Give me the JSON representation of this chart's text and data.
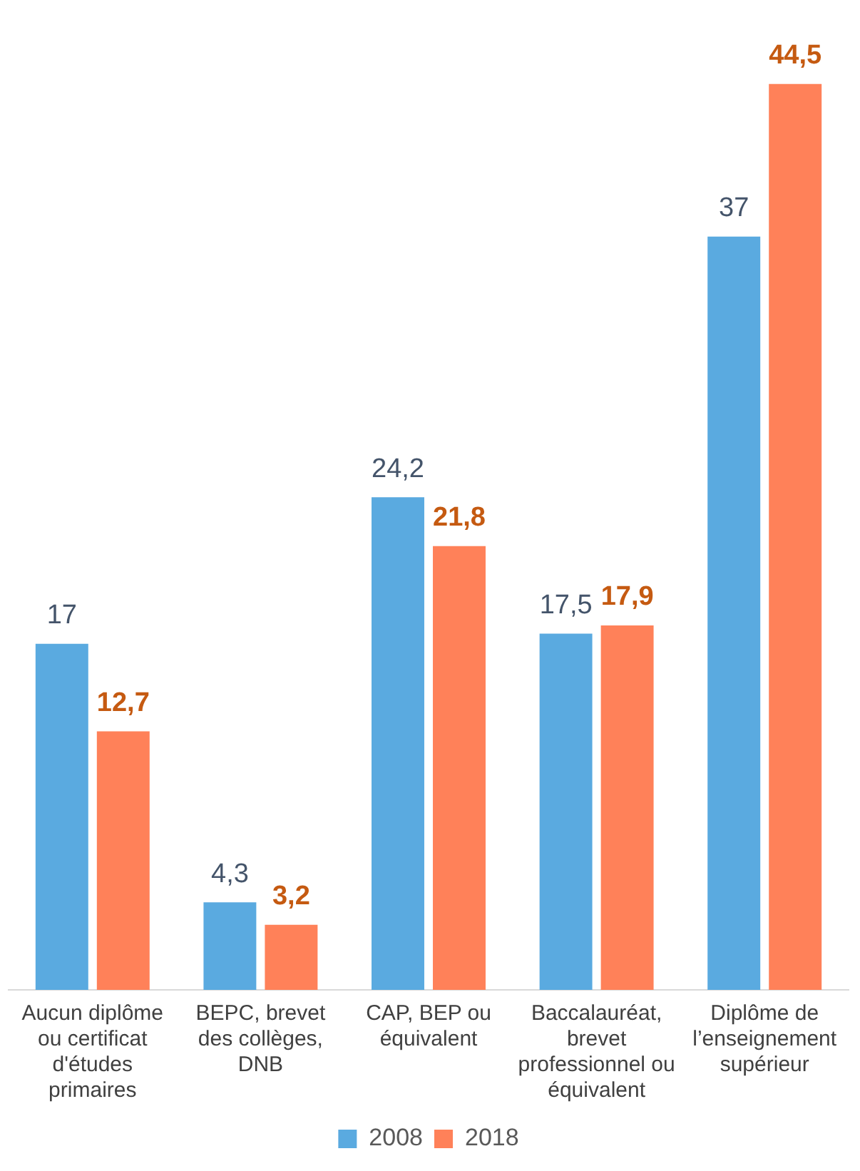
{
  "chart_data": {
    "type": "bar",
    "categories": [
      "Aucun diplôme ou certificat d'études primaires",
      "BEPC, brevet des collèges, DNB",
      "CAP, BEP ou équivalent",
      "Baccalauréat, brevet professionnel ou équivalent",
      "Diplôme de l’enseignement supérieur"
    ],
    "series": [
      {
        "name": "2008",
        "color": "#5aaae0",
        "values": [
          17,
          4.3,
          24.2,
          17.5,
          37
        ],
        "value_labels": [
          "17",
          "4,3",
          "24,2",
          "17,5",
          "37"
        ]
      },
      {
        "name": "2018",
        "color": "#ff8159",
        "values": [
          12.7,
          3.2,
          21.8,
          17.9,
          44.5
        ],
        "value_labels": [
          "12,7",
          "3,2",
          "21,8",
          "17,9",
          "44,5"
        ]
      }
    ],
    "legend": "bottom"
  }
}
